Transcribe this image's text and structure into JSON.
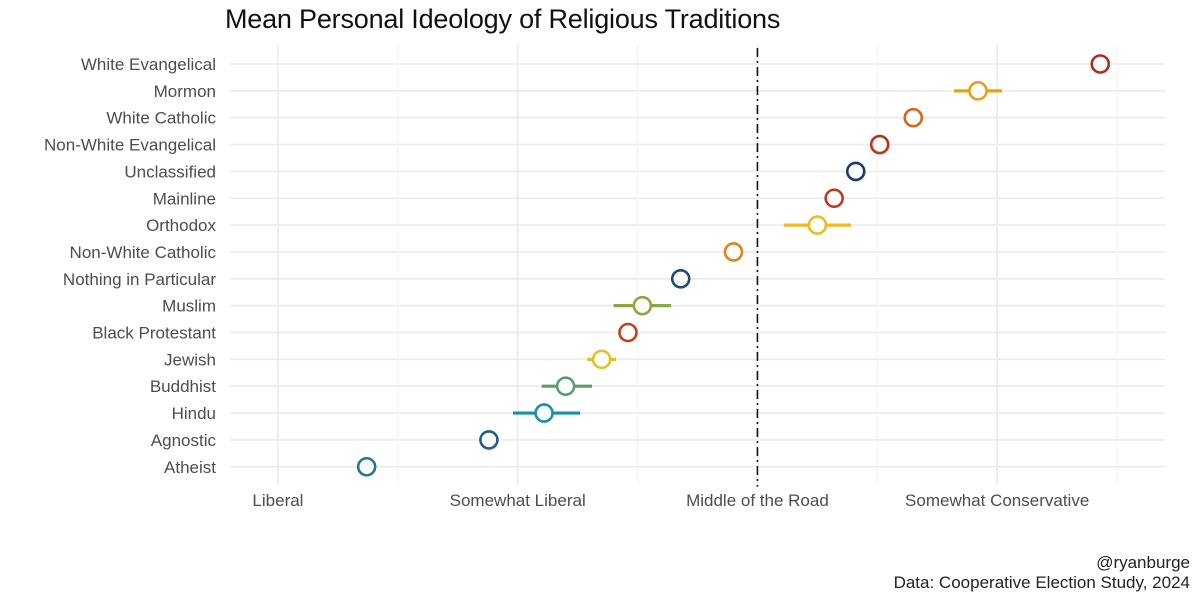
{
  "chart_data": {
    "type": "scatter",
    "title": "Mean Personal Ideology of Religious Traditions",
    "xlabel": "",
    "ylabel": "",
    "x_ticks": [
      {
        "value": 1,
        "label": "Liberal"
      },
      {
        "value": 2,
        "label": "Somewhat Liberal"
      },
      {
        "value": 3,
        "label": "Middle of the Road"
      },
      {
        "value": 4,
        "label": "Somewhat Conservative"
      }
    ],
    "xlim": [
      0.8,
      4.7
    ],
    "reference_line": {
      "value": 3,
      "style": "dash-dot"
    },
    "series": [
      {
        "name": "White Evangelical",
        "mean": 4.43,
        "ci": [
          4.42,
          4.44
        ],
        "color": "#b5281c"
      },
      {
        "name": "Mormon",
        "mean": 3.92,
        "ci": [
          3.82,
          4.02
        ],
        "color": "#e3a21a"
      },
      {
        "name": "White Catholic",
        "mean": 3.65,
        "ci": [
          3.64,
          3.66
        ],
        "color": "#d4661e"
      },
      {
        "name": "Non-White Evangelical",
        "mean": 3.51,
        "ci": [
          3.48,
          3.54
        ],
        "color": "#c0301b"
      },
      {
        "name": "Unclassified",
        "mean": 3.41,
        "ci": [
          3.4,
          3.42
        ],
        "color": "#1a3a6b"
      },
      {
        "name": "Mainline",
        "mean": 3.32,
        "ci": [
          3.31,
          3.33
        ],
        "color": "#c0391b"
      },
      {
        "name": "Orthodox",
        "mean": 3.25,
        "ci": [
          3.11,
          3.39
        ],
        "color": "#f0b922"
      },
      {
        "name": "Non-White Catholic",
        "mean": 2.9,
        "ci": [
          2.89,
          2.91
        ],
        "color": "#de8516"
      },
      {
        "name": "Nothing in Particular",
        "mean": 2.68,
        "ci": [
          2.67,
          2.69
        ],
        "color": "#1e4a7a"
      },
      {
        "name": "Muslim",
        "mean": 2.52,
        "ci": [
          2.4,
          2.64
        ],
        "color": "#89a83f"
      },
      {
        "name": "Black Protestant",
        "mean": 2.46,
        "ci": [
          2.44,
          2.48
        ],
        "color": "#c7401b"
      },
      {
        "name": "Jewish",
        "mean": 2.35,
        "ci": [
          2.29,
          2.41
        ],
        "color": "#e3c12b"
      },
      {
        "name": "Buddhist",
        "mean": 2.2,
        "ci": [
          2.1,
          2.31
        ],
        "color": "#5a9e6f"
      },
      {
        "name": "Hindu",
        "mean": 2.11,
        "ci": [
          1.98,
          2.26
        ],
        "color": "#1990a6"
      },
      {
        "name": "Agnostic",
        "mean": 1.88,
        "ci": [
          1.87,
          1.89
        ],
        "color": "#1d5e8a"
      },
      {
        "name": "Atheist",
        "mean": 1.37,
        "ci": [
          1.36,
          1.38
        ],
        "color": "#1a7a95"
      }
    ]
  },
  "caption": {
    "handle": "@ryanburge",
    "source": "Data: Cooperative Election Study, 2024"
  }
}
